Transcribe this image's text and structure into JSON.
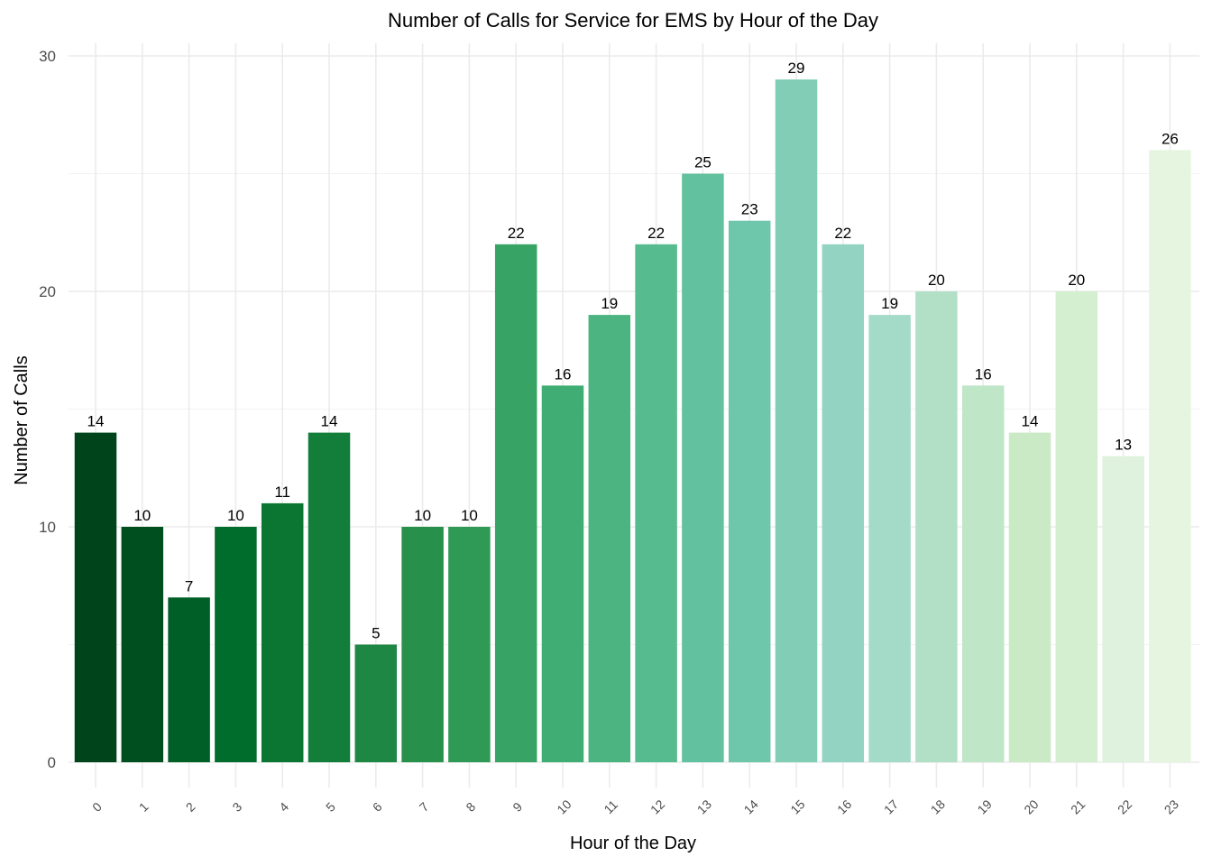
{
  "chart_data": {
    "type": "bar",
    "title": "Number of Calls for Service for EMS by Hour of the Day",
    "xlabel": "Hour of the Day",
    "ylabel": "Number of Calls",
    "categories": [
      "0",
      "1",
      "2",
      "3",
      "4",
      "5",
      "6",
      "7",
      "8",
      "9",
      "10",
      "11",
      "12",
      "13",
      "14",
      "15",
      "16",
      "17",
      "18",
      "19",
      "20",
      "21",
      "22",
      "23"
    ],
    "values": [
      14,
      10,
      7,
      10,
      11,
      14,
      5,
      10,
      10,
      22,
      16,
      19,
      22,
      25,
      23,
      29,
      22,
      19,
      20,
      16,
      14,
      20,
      13,
      26
    ],
    "ylim": [
      0,
      30
    ],
    "yticks": [
      0,
      10,
      20,
      30
    ],
    "grid": true,
    "legend": "none",
    "colors": [
      "#00441b",
      "#00501f",
      "#005f27",
      "#006d2c",
      "#0a7632",
      "#137e3a",
      "#1d8743",
      "#27904b",
      "#2e9a56",
      "#37a466",
      "#40ad75",
      "#4bb481",
      "#56bb8f",
      "#62c19e",
      "#6ec7aa",
      "#81cdb6",
      "#92d4c1",
      "#a4dbc8",
      "#b1e0c7",
      "#bee6c7",
      "#caeac6",
      "#d4eed0",
      "#deF2dd",
      "#e5f5e0"
    ]
  }
}
